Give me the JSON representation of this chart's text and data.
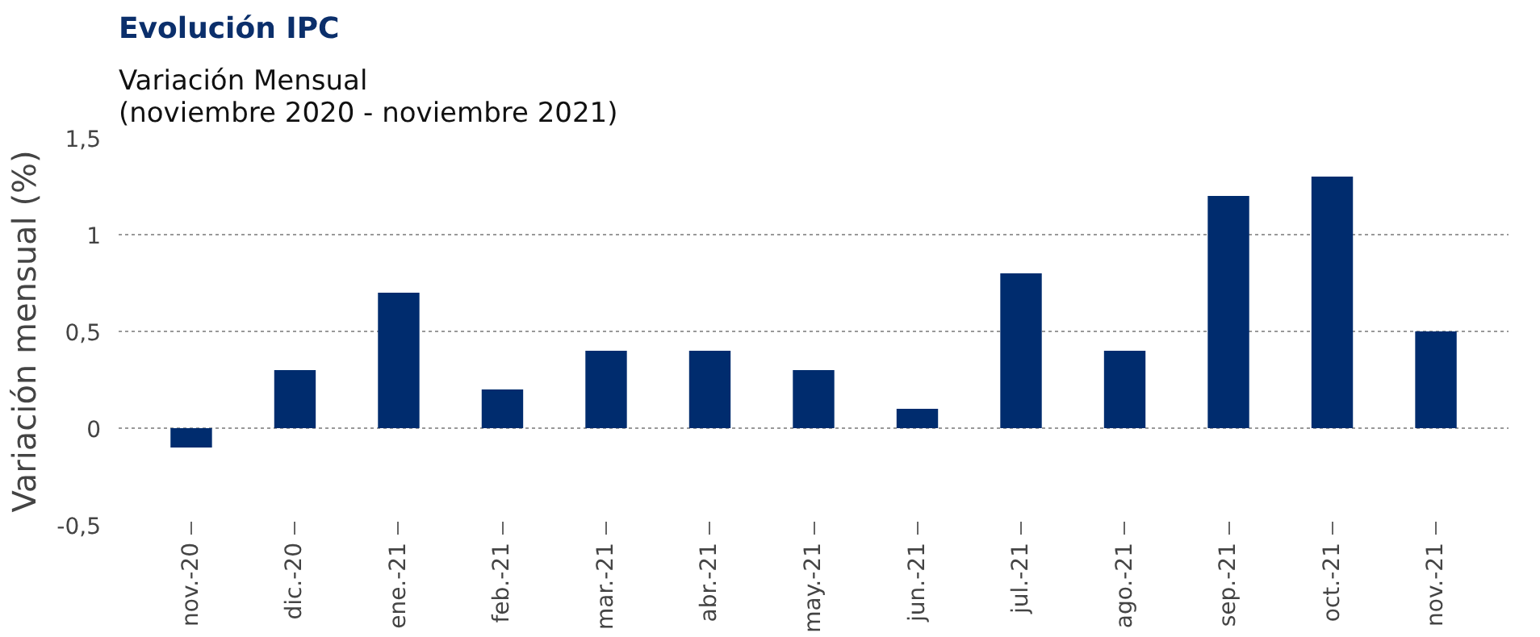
{
  "chart_data": {
    "type": "bar",
    "title": "Evolución IPC",
    "subtitle": "Variación Mensual\n(noviembre 2020 - noviembre 2021)",
    "ylabel": "Variación mensual (%)",
    "categories": [
      "nov.-20",
      "dic.-20",
      "ene.-21",
      "feb.-21",
      "mar.-21",
      "abr.-21",
      "may.-21",
      "jun.-21",
      "jul.-21",
      "ago.-21",
      "sep.-21",
      "oct.-21",
      "nov.-21"
    ],
    "values": [
      -0.1,
      0.3,
      0.7,
      0.2,
      0.4,
      0.4,
      0.3,
      0.1,
      0.8,
      0.4,
      1.2,
      1.3,
      0.5
    ],
    "color": "#002c6e",
    "ylim": [
      -0.5,
      1.5
    ],
    "yticks": [
      {
        "value": -0.5,
        "label": "-0,5"
      },
      0,
      {
        "value": 0.5,
        "label": "0,5"
      },
      1,
      {
        "value": 1.5,
        "label": "1,5"
      }
    ],
    "grid": "y"
  }
}
